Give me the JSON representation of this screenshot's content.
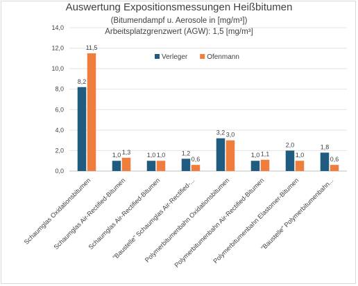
{
  "chart_data": {
    "type": "bar",
    "title": "Auswertung Expositionsmessungen Heißbitumen",
    "subtitle_lines": [
      "(Bitumendampf u. Aerosole in [mg/m³])",
      "Arbeitsplatzgrenzwert (AGW): 1,5 [mg/m³]"
    ],
    "categories": [
      "Schaumglas Oxidationsbitumen",
      "Schaumglas Air-Rectified-Bitumen",
      "Schaumglas Air-Rectified-Bitumen",
      "\"Baustelle\" Schaumglas Air-Rectified-...",
      "Polymerbitumenbahn Oxidationsbitumen",
      "Polymerbitumenbahn Air-Rectified-Bitumen",
      "Polymerbitumenbahn Elastomer-Bitumen",
      "\"Baustelle\" Polymerbitumenbahn..."
    ],
    "series": [
      {
        "name": "Verleger",
        "color": "#1f5c80",
        "values": [
          8.2,
          1.0,
          1.0,
          1.2,
          3.2,
          1.0,
          2.0,
          1.8
        ],
        "labels": [
          "8,2",
          "1,0",
          "1,0",
          "1,2",
          "3,2",
          "1,0",
          "2,0",
          "1,8"
        ]
      },
      {
        "name": "Ofenmann",
        "color": "#ee7d3e",
        "values": [
          11.5,
          1.3,
          1.0,
          0.6,
          3.0,
          1.1,
          1.0,
          0.6
        ],
        "labels": [
          "11,5",
          "1,3",
          "1,0",
          "0,6",
          "3,0",
          "1,1",
          "1,0",
          "0,6"
        ]
      }
    ],
    "ylim": [
      0,
      14
    ],
    "yticks": [
      0,
      2,
      4,
      6,
      8,
      10,
      12,
      14
    ],
    "ytick_labels": [
      "0,0",
      "2,0",
      "4,0",
      "6,0",
      "8,0",
      "10,0",
      "12,0",
      "14,0"
    ],
    "xlabel": "",
    "ylabel": "",
    "grid": true,
    "legend_position": "top-center"
  }
}
